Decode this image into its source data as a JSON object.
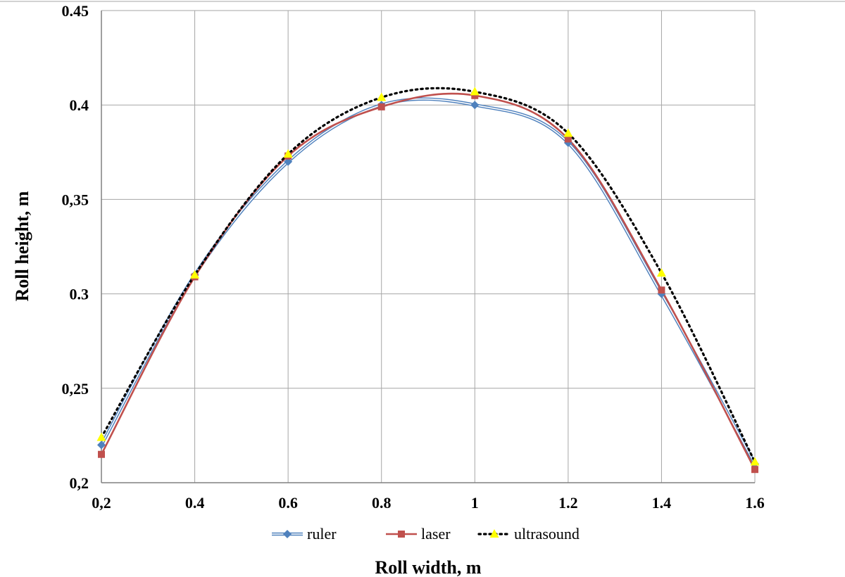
{
  "chart_data": {
    "type": "line",
    "xlabel": "Roll width, m",
    "ylabel": "Roll height, m",
    "xlim": [
      0.2,
      1.6
    ],
    "ylim": [
      0.2,
      0.45
    ],
    "x_tick_labels": [
      "0,2",
      "0.4",
      "0.6",
      "0.8",
      "1",
      "1.2",
      "1.4",
      "1.6"
    ],
    "y_tick_labels": [
      "0,2",
      "0,25",
      "0.3",
      "0,35",
      "0.4",
      "0.45"
    ],
    "grid": true,
    "legend_position": "bottom",
    "x": [
      0.2,
      0.4,
      0.6,
      0.8,
      1.0,
      1.2,
      1.4,
      1.6
    ],
    "series": [
      {
        "name": "ruler",
        "values": [
          0.22,
          0.31,
          0.37,
          0.4,
          0.4,
          0.38,
          0.3,
          0.21
        ],
        "color": "#4f81bd",
        "marker": "diamond",
        "line_style": "double"
      },
      {
        "name": "laser",
        "values": [
          0.215,
          0.309,
          0.373,
          0.399,
          0.405,
          0.382,
          0.302,
          0.207
        ],
        "color": "#c0504d",
        "marker": "square",
        "line_style": "solid"
      },
      {
        "name": "ultrasound",
        "values": [
          0.224,
          0.31,
          0.374,
          0.404,
          0.407,
          0.385,
          0.311,
          0.211
        ],
        "color": "#000000",
        "marker": "triangle",
        "marker_color": "#ffff00",
        "line_style": "dotted"
      }
    ]
  }
}
